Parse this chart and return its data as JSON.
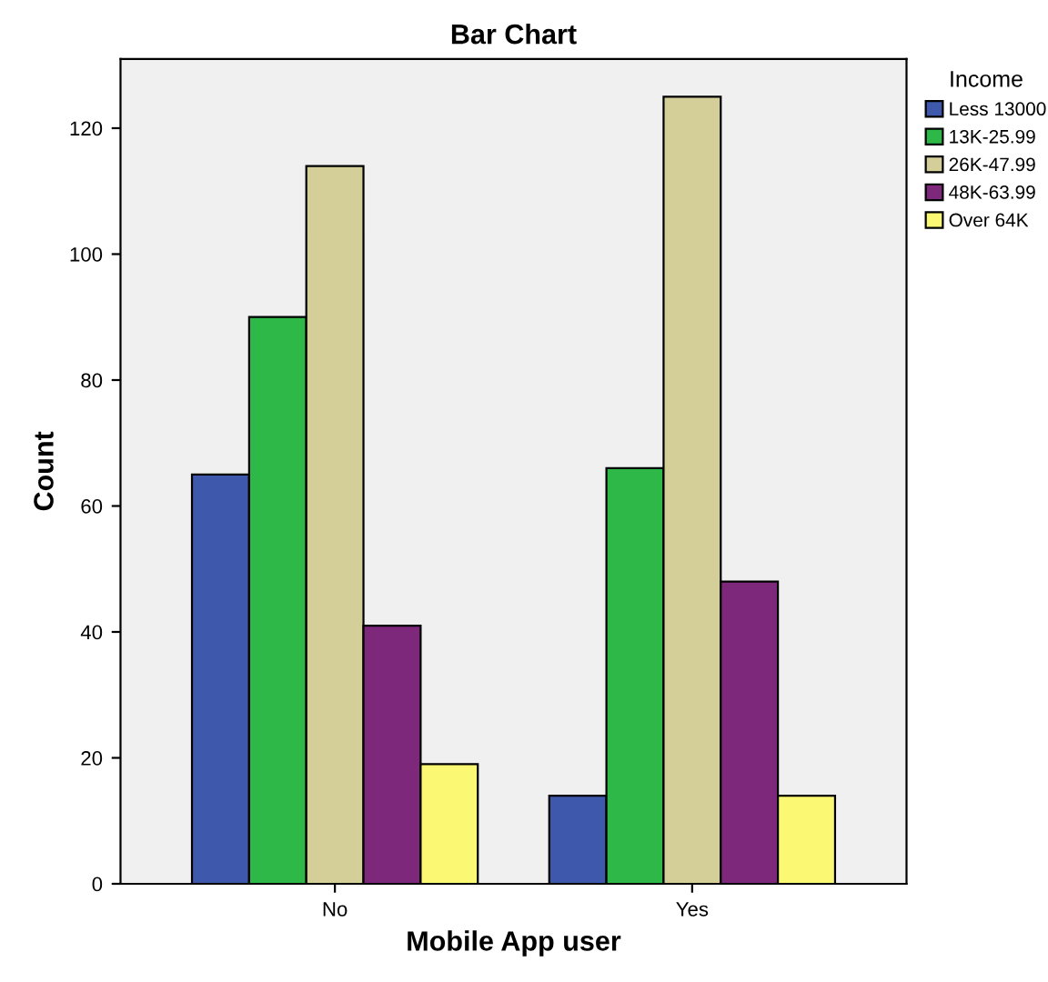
{
  "chart_data": {
    "type": "bar",
    "title": "Bar Chart",
    "xlabel": "Mobile App user",
    "ylabel": "Count",
    "legend_title": "Income",
    "categories": [
      "No",
      "Yes"
    ],
    "series": [
      {
        "name": "Less 13000",
        "color": "#3e58ac",
        "values": [
          65,
          14
        ]
      },
      {
        "name": "13K-25.99",
        "color": "#2eb848",
        "values": [
          90,
          66
        ]
      },
      {
        "name": "26K-47.99",
        "color": "#d4cf98",
        "values": [
          114,
          125
        ]
      },
      {
        "name": "48K-63.99",
        "color": "#7d287b",
        "values": [
          41,
          48
        ]
      },
      {
        "name": "Over 64K",
        "color": "#fbf873",
        "values": [
          19,
          14
        ]
      }
    ],
    "ylim": [
      0,
      131
    ],
    "yticks": [
      0,
      20,
      40,
      60,
      80,
      100,
      120
    ],
    "legend": "right",
    "grid": false
  }
}
